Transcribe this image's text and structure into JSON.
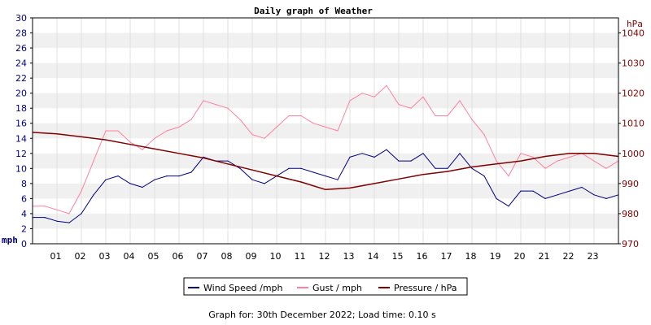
{
  "chart_data": {
    "type": "line",
    "title": "Daily graph of Weather",
    "x_tick_labels": [
      "01",
      "02",
      "03",
      "04",
      "05",
      "06",
      "07",
      "08",
      "09",
      "10",
      "11",
      "12",
      "13",
      "14",
      "15",
      "16",
      "17",
      "18",
      "19",
      "20",
      "21",
      "22",
      "23"
    ],
    "xlim": [
      0,
      24
    ],
    "left_axis": {
      "unit_label": "mph",
      "range": [
        0,
        30
      ],
      "ticks": [
        0,
        2,
        4,
        6,
        8,
        10,
        12,
        14,
        16,
        18,
        20,
        22,
        24,
        26,
        28,
        30
      ],
      "color": "#000080"
    },
    "right_axis": {
      "unit_label": "hPa",
      "range": [
        970,
        1045
      ],
      "ticks": [
        970,
        980,
        990,
        1000,
        1010,
        1020,
        1030,
        1040
      ],
      "color": "#800000"
    },
    "series": [
      {
        "name": "Wind Speed /mph",
        "axis": "left",
        "color": "#000080",
        "x": [
          0,
          0.5,
          1,
          1.5,
          2,
          2.5,
          3,
          3.5,
          4,
          4.5,
          5,
          5.5,
          6,
          6.5,
          7,
          7.5,
          8,
          8.5,
          9,
          9.5,
          10,
          10.5,
          11,
          11.5,
          12,
          12.5,
          13,
          13.5,
          14,
          14.5,
          15,
          15.5,
          16,
          16.5,
          17,
          17.5,
          18,
          18.5,
          19,
          19.5,
          20,
          20.5,
          21,
          21.5,
          22,
          22.5,
          23,
          23.5,
          24
        ],
        "values": [
          3.5,
          3.5,
          3,
          2.8,
          4,
          6.5,
          8.5,
          9,
          8,
          7.5,
          8.5,
          9,
          9,
          9.5,
          11.5,
          11,
          11,
          10,
          8.5,
          8,
          9,
          10,
          10,
          9.5,
          9,
          8.5,
          11.5,
          12,
          11.5,
          12.5,
          11,
          11,
          12,
          10,
          10,
          12,
          10,
          9,
          6,
          5,
          7,
          7,
          6,
          6.5,
          7,
          7.5,
          6.5,
          6,
          6.5
        ]
      },
      {
        "name": "Gust / mph",
        "axis": "left",
        "color": "#ff80a0",
        "x": [
          0,
          0.5,
          1,
          1.5,
          2,
          2.5,
          3,
          3.5,
          4,
          4.5,
          5,
          5.5,
          6,
          6.5,
          7,
          7.5,
          8,
          8.5,
          9,
          9.5,
          10,
          10.5,
          11,
          11.5,
          12,
          12.5,
          13,
          13.5,
          14,
          14.5,
          15,
          15.5,
          16,
          16.5,
          17,
          17.5,
          18,
          18.5,
          19,
          19.5,
          20,
          20.5,
          21,
          21.5,
          22,
          22.5,
          23,
          23.5,
          24
        ],
        "values": [
          5,
          5,
          4.5,
          4,
          7,
          11,
          15,
          15,
          13.5,
          12.5,
          14,
          15,
          15.5,
          16.5,
          19,
          18.5,
          18,
          16.5,
          14.5,
          14,
          15.5,
          17,
          17,
          16,
          15.5,
          15,
          19,
          20,
          19.5,
          21,
          18.5,
          18,
          19.5,
          17,
          17,
          19,
          16.5,
          14.5,
          11,
          9,
          12,
          11.5,
          10,
          11,
          11.5,
          12,
          11,
          10,
          11
        ]
      },
      {
        "name": "Pressure / hPa",
        "axis": "right",
        "color": "#800000",
        "x": [
          0,
          1,
          2,
          3,
          4,
          5,
          6,
          7,
          8,
          9,
          10,
          11,
          12,
          13,
          14,
          15,
          16,
          17,
          18,
          19,
          20,
          21,
          22,
          23,
          24
        ],
        "values": [
          1007,
          1006.5,
          1005.5,
          1004.5,
          1003,
          1001.5,
          1000,
          998.5,
          996.5,
          994.5,
          992.5,
          990.5,
          988,
          988.5,
          990,
          991.5,
          993,
          994,
          995.5,
          996.5,
          997.5,
          999,
          1000,
          1000,
          999
        ]
      }
    ],
    "grid": "horizontal bands",
    "legend_position": "bottom"
  },
  "footer": {
    "text": "Graph for: 30th December 2022; Load time: 0.10 s"
  }
}
